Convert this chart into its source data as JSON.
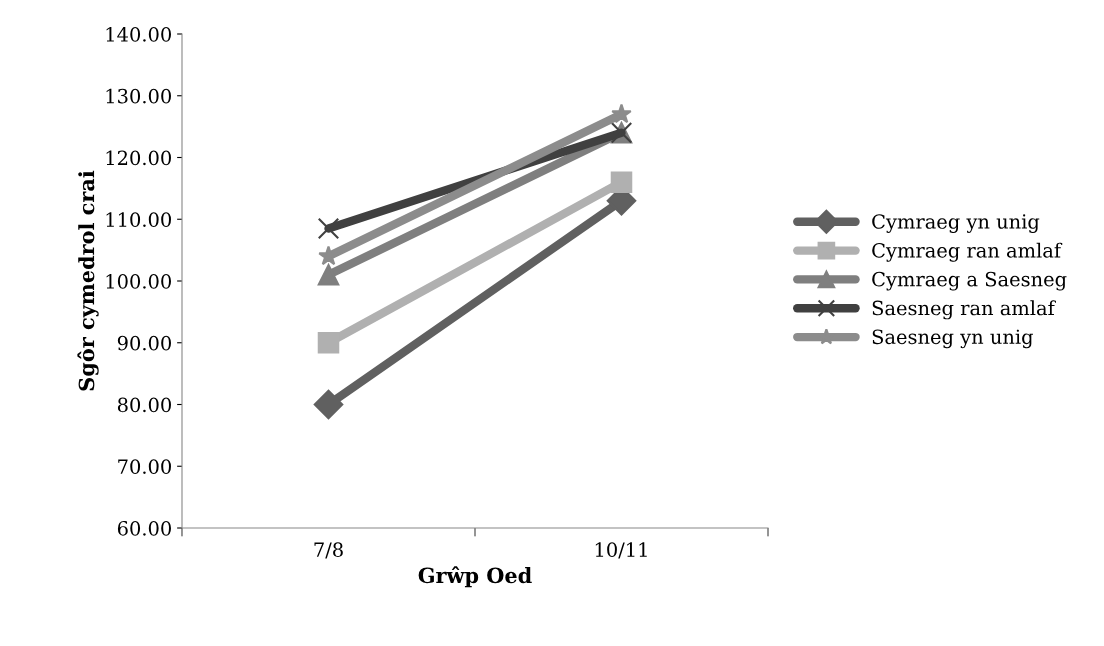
{
  "chart_data": {
    "type": "line",
    "xlabel": "Grŵp Oed",
    "ylabel": "Sgôr cymedrol crai",
    "categories": [
      "7/8",
      "10/11"
    ],
    "series": [
      {
        "name": "Cymraeg yn unig",
        "color": "#606060",
        "marker": "diamond",
        "values": [
          80,
          113
        ]
      },
      {
        "name": "Cymraeg ran amlaf",
        "color": "#b0b0b0",
        "marker": "square",
        "values": [
          90,
          116
        ]
      },
      {
        "name": "Cymraeg a Saesneg",
        "color": "#7f7f7f",
        "marker": "triangle",
        "values": [
          101,
          124
        ]
      },
      {
        "name": "Saesneg ran amlaf",
        "color": "#404040",
        "marker": "cross",
        "values": [
          108.5,
          124
        ]
      },
      {
        "name": "Saesneg yn unig",
        "color": "#8c8c8c",
        "marker": "star",
        "values": [
          104,
          127
        ]
      }
    ],
    "ylim": [
      60,
      140
    ],
    "yticks": [
      {
        "value": 60,
        "label": "60.00"
      },
      {
        "value": 70,
        "label": "70.00"
      },
      {
        "value": 80,
        "label": "80.00"
      },
      {
        "value": 90,
        "label": "90.00"
      },
      {
        "value": 100,
        "label": "100.00"
      },
      {
        "value": 110,
        "label": "110.00"
      },
      {
        "value": 120,
        "label": "120.00"
      },
      {
        "value": 130,
        "label": "130.00"
      },
      {
        "value": 140,
        "label": "140.00"
      }
    ],
    "grid": false,
    "legend": "right",
    "line_style": "solid"
  }
}
